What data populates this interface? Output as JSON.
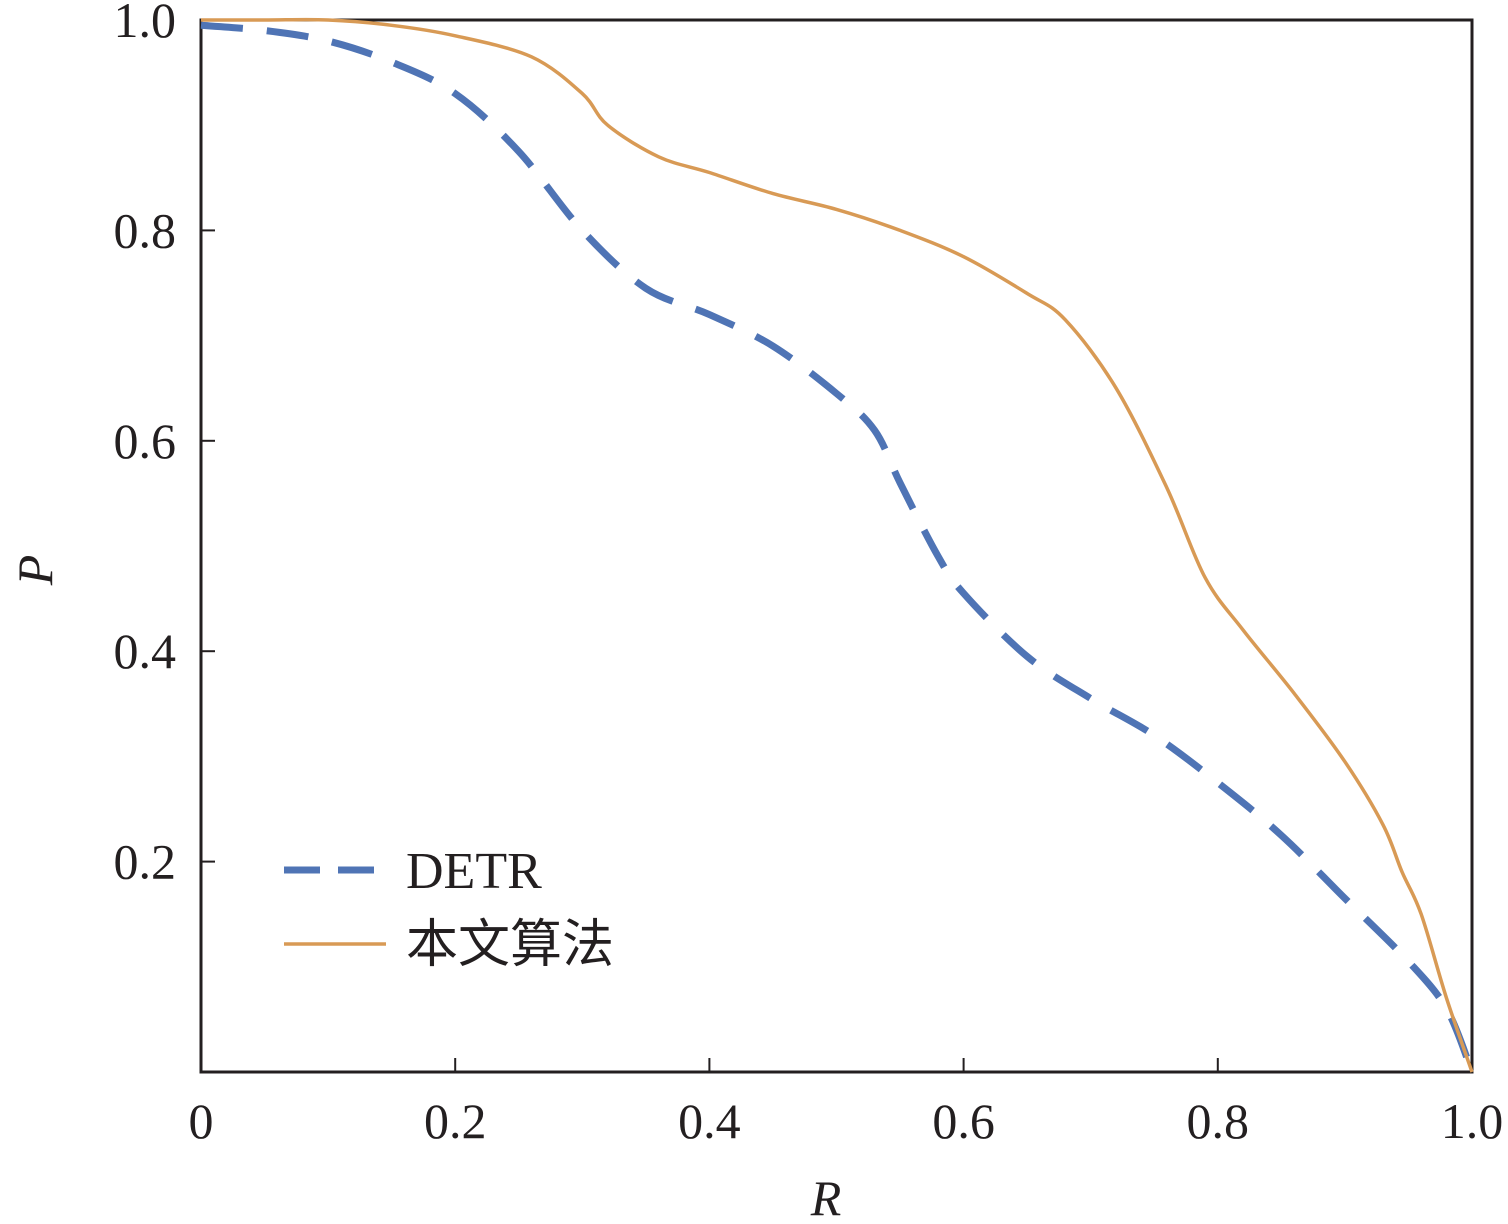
{
  "chart_data": {
    "type": "line",
    "title": "",
    "xlabel": "R",
    "ylabel": "P",
    "xlim": [
      0,
      1.0
    ],
    "ylim": [
      0,
      1.0
    ],
    "xticks": [
      0,
      0.2,
      0.4,
      0.6,
      0.8,
      1.0
    ],
    "xtick_labels": [
      "0",
      "0.2",
      "0.4",
      "0.6",
      "0.8",
      "1.0"
    ],
    "yticks": [
      0.2,
      0.4,
      0.6,
      0.8,
      1.0
    ],
    "ytick_labels": [
      "0.2",
      "0.4",
      "0.6",
      "0.8",
      "1.0"
    ],
    "grid": false,
    "legend_position": "bottom-left",
    "series": [
      {
        "name": "DETR",
        "style": "dashed",
        "color": "#4f74b5",
        "x": [
          0,
          0.05,
          0.1,
          0.15,
          0.2,
          0.25,
          0.3,
          0.35,
          0.4,
          0.45,
          0.5,
          0.53,
          0.55,
          0.58,
          0.6,
          0.65,
          0.7,
          0.75,
          0.8,
          0.85,
          0.9,
          0.95,
          0.98,
          1.0
        ],
        "y": [
          0.995,
          0.99,
          0.98,
          0.96,
          0.93,
          0.875,
          0.8,
          0.745,
          0.72,
          0.69,
          0.645,
          0.61,
          0.56,
          0.49,
          0.455,
          0.395,
          0.355,
          0.32,
          0.275,
          0.225,
          0.165,
          0.105,
          0.06,
          0.0
        ]
      },
      {
        "name": "本文算法",
        "style": "solid",
        "color": "#d89a55",
        "x": [
          0,
          0.05,
          0.1,
          0.15,
          0.2,
          0.26,
          0.3,
          0.32,
          0.36,
          0.4,
          0.45,
          0.5,
          0.55,
          0.6,
          0.65,
          0.68,
          0.72,
          0.76,
          0.79,
          0.82,
          0.86,
          0.9,
          0.93,
          0.945,
          0.96,
          0.98,
          1.0
        ],
        "y": [
          1.0,
          1.0,
          1.0,
          0.995,
          0.985,
          0.965,
          0.93,
          0.9,
          0.87,
          0.855,
          0.835,
          0.82,
          0.8,
          0.775,
          0.74,
          0.715,
          0.65,
          0.555,
          0.47,
          0.42,
          0.36,
          0.295,
          0.235,
          0.19,
          0.15,
          0.07,
          0.0
        ]
      }
    ]
  }
}
